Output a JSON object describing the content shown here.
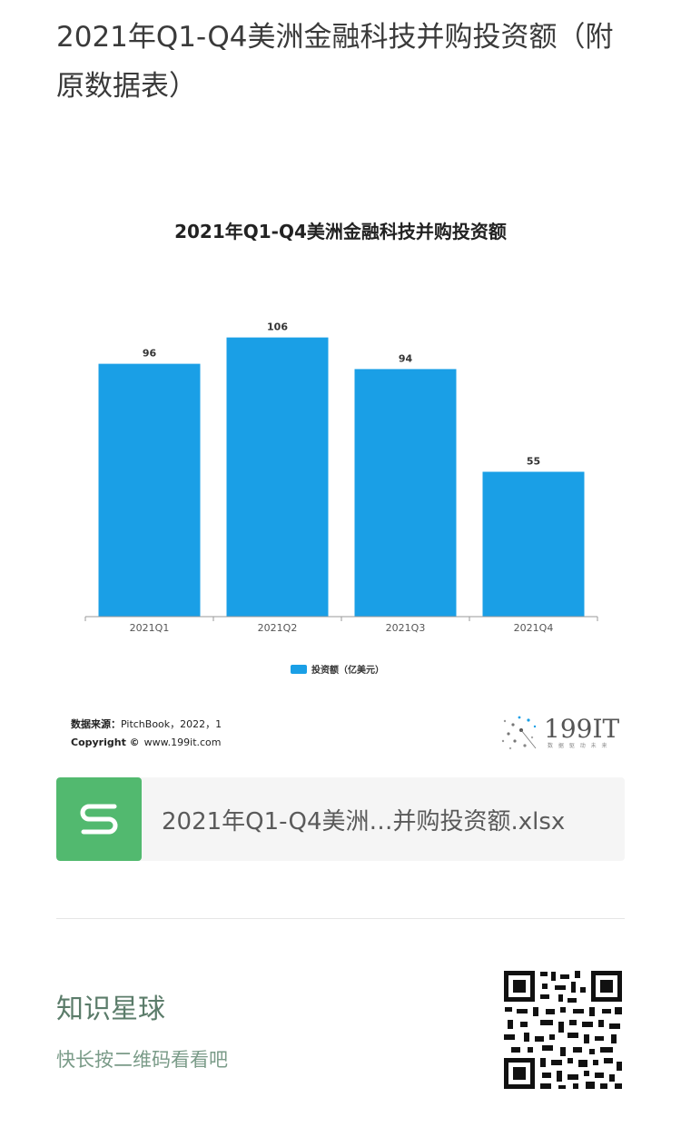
{
  "page": {
    "title": "2021年Q1-Q4美洲金融科技并购投资额（附原数据表）"
  },
  "chart_data": {
    "type": "bar",
    "title": "2021年Q1-Q4美洲金融科技并购投资额",
    "categories": [
      "2021Q1",
      "2021Q2",
      "2021Q3",
      "2021Q4"
    ],
    "series": [
      {
        "name": "投资额（亿美元）",
        "values": [
          96,
          106,
          94,
          55
        ]
      }
    ],
    "ylim": [
      0,
      110
    ],
    "data_labels": true,
    "grid": false,
    "legend_position": "bottom",
    "bar_color": "#1a9fe6",
    "source": {
      "label": "数据来源：",
      "text": "PitchBook，2022，1",
      "copyright_label": "Copyright ©",
      "copyright_text": "www.199it.com"
    },
    "logo": {
      "text": "199IT",
      "tagline": "数 据 驱 动 未 来"
    }
  },
  "attachment": {
    "file_name": "2021年Q1-Q4美洲…并购投资额.xlsx",
    "icon": "spreadsheet-icon",
    "icon_color": "#52b96f"
  },
  "footer": {
    "title": "知识星球",
    "subtitle": "快长按二维码看看吧",
    "qr_icon": "qr-code-icon"
  }
}
